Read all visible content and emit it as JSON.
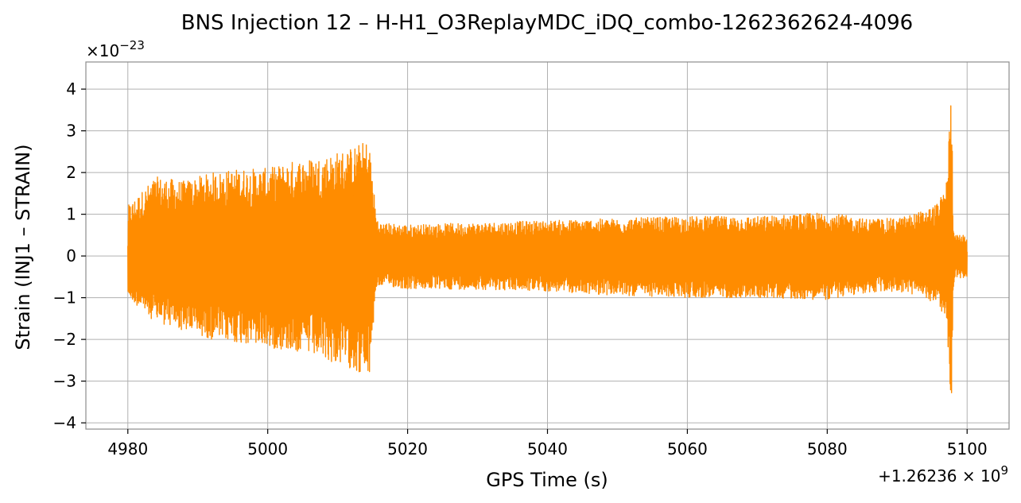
{
  "chart_data": {
    "type": "line",
    "title": "BNS Injection 12 – H-H1_O3ReplayMDC_iDQ_combo-1262362624-4096",
    "xlabel": "GPS Time (s)",
    "ylabel": "Strain (INJ1 – STRAIN)",
    "y_scale_label": "×10",
    "y_scale_exponent": "−23",
    "x_offset_label": "+1.26236 × 10",
    "x_offset_exponent": "9",
    "xlim": [
      4974,
      5106
    ],
    "ylim": [
      -4.15,
      4.65
    ],
    "x_ticks": [
      {
        "value": 4980,
        "label": "4980"
      },
      {
        "value": 5000,
        "label": "5000"
      },
      {
        "value": 5020,
        "label": "5020"
      },
      {
        "value": 5040,
        "label": "5040"
      },
      {
        "value": 5060,
        "label": "5060"
      },
      {
        "value": 5080,
        "label": "5080"
      },
      {
        "value": 5100,
        "label": "5100"
      }
    ],
    "y_ticks": [
      {
        "value": -4,
        "label": "−4"
      },
      {
        "value": -3,
        "label": "−3"
      },
      {
        "value": -2,
        "label": "−2"
      },
      {
        "value": -1,
        "label": "−1"
      },
      {
        "value": 0,
        "label": "0"
      },
      {
        "value": 1,
        "label": "1"
      },
      {
        "value": 2,
        "label": "2"
      },
      {
        "value": 3,
        "label": "3"
      },
      {
        "value": 4,
        "label": "4"
      }
    ],
    "grid": true,
    "series": [
      {
        "color": "#ff8c00",
        "x_range": [
          4980,
          5100
        ],
        "envelope": {
          "x": [
            4980,
            4984,
            4988,
            4992,
            4996,
            5000,
            5004,
            5008,
            5012,
            5014.5,
            5015.5,
            5016,
            5020,
            5030,
            5040,
            5050,
            5060,
            5070,
            5080,
            5085,
            5090,
            5094,
            5096,
            5097,
            5097.8,
            5098,
            5098.3,
            5099,
            5100
          ],
          "upper": [
            1.2,
            1.9,
            1.8,
            2.0,
            2.1,
            2.1,
            2.3,
            2.4,
            2.6,
            2.8,
            1.0,
            0.8,
            0.75,
            0.8,
            0.85,
            0.9,
            0.95,
            0.95,
            1.05,
            0.9,
            0.9,
            1.1,
            1.3,
            1.7,
            4.25,
            0.9,
            0.5,
            0.5,
            0.5
          ],
          "lower": [
            -1.0,
            -1.6,
            -1.8,
            -2.0,
            -2.1,
            -2.2,
            -2.3,
            -2.5,
            -2.7,
            -3.0,
            -0.8,
            -0.7,
            -0.8,
            -0.8,
            -0.85,
            -0.95,
            -1.0,
            -1.0,
            -1.05,
            -0.9,
            -0.85,
            -1.0,
            -1.2,
            -1.6,
            -3.75,
            -0.9,
            -0.5,
            -0.55,
            -0.5
          ]
        }
      }
    ]
  }
}
